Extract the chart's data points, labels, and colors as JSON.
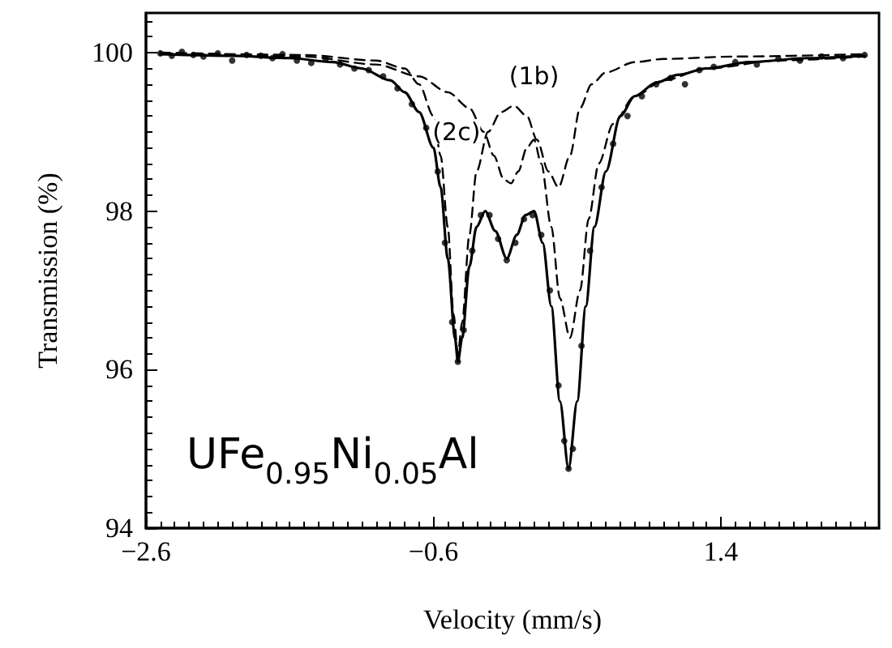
{
  "chart_data": {
    "type": "line",
    "xlabel": "Velocity (mm/s)",
    "ylabel": "Transmission (%)",
    "xlim": [
      -2.6,
      2.5
    ],
    "xticks": [
      -2.6,
      -0.6,
      1.4
    ],
    "ylim": [
      94,
      100.5
    ],
    "yticks": [
      94,
      96,
      98,
      100
    ],
    "annotations": [
      {
        "text": "(2c)",
        "x": -0.44,
        "y": 99.0
      },
      {
        "text": "(1b)",
        "x": 0.1,
        "y": 99.7
      },
      "UFe$_{0.95}$Ni$_{0.05}$Al"
    ],
    "series": [
      {
        "type": "scatter",
        "color": "#000000",
        "marker": "circle",
        "x": [
          -2.5,
          -2.42,
          -2.35,
          -2.27,
          -2.2,
          -2.1,
          -2.0,
          -1.9,
          -1.8,
          -1.72,
          -1.65,
          -1.55,
          -1.45,
          -1.35,
          -1.25,
          -1.15,
          -1.05,
          -0.95,
          -0.85,
          -0.75,
          -0.65,
          -0.57,
          -0.52,
          -0.47,
          -0.43,
          -0.39,
          -0.33,
          -0.27,
          -0.21,
          -0.15,
          -0.09,
          -0.03,
          0.03,
          0.09,
          0.15,
          0.21,
          0.27,
          0.31,
          0.34,
          0.37,
          0.43,
          0.49,
          0.57,
          0.65,
          0.75,
          0.85,
          0.95,
          1.05,
          1.15,
          1.25,
          1.35,
          1.5,
          1.65,
          1.8,
          1.95,
          2.1,
          2.25,
          2.4
        ],
        "values": [
          99.99,
          99.96,
          100.01,
          99.97,
          99.95,
          99.99,
          99.9,
          99.97,
          99.96,
          99.93,
          99.98,
          99.9,
          99.87,
          99.92,
          99.85,
          99.8,
          99.78,
          99.7,
          99.55,
          99.35,
          99.05,
          98.5,
          97.6,
          96.6,
          96.1,
          96.5,
          97.5,
          97.95,
          97.95,
          97.65,
          97.38,
          97.6,
          97.9,
          97.95,
          97.7,
          97.0,
          95.8,
          95.1,
          94.75,
          95.0,
          96.3,
          97.5,
          98.3,
          98.85,
          99.2,
          99.45,
          99.6,
          99.68,
          99.6,
          99.78,
          99.82,
          99.88,
          99.85,
          99.92,
          99.9,
          99.95,
          99.93,
          99.97
        ]
      },
      {
        "color": "#000000",
        "line_style": "solid",
        "x": [
          -2.5,
          -2.0,
          -1.6,
          -1.3,
          -1.1,
          -0.9,
          -0.8,
          -0.7,
          -0.6,
          -0.55,
          -0.5,
          -0.45,
          -0.43,
          -0.4,
          -0.35,
          -0.3,
          -0.24,
          -0.17,
          -0.09,
          -0.02,
          0.04,
          0.1,
          0.16,
          0.22,
          0.28,
          0.34,
          0.4,
          0.46,
          0.52,
          0.6,
          0.7,
          0.8,
          0.95,
          1.1,
          1.3,
          1.6,
          2.0,
          2.4
        ],
        "values": [
          99.98,
          99.96,
          99.93,
          99.88,
          99.8,
          99.65,
          99.5,
          99.25,
          98.8,
          98.3,
          97.4,
          96.4,
          96.1,
          96.4,
          97.3,
          97.8,
          98.0,
          97.75,
          97.4,
          97.7,
          97.95,
          98.0,
          97.6,
          96.8,
          95.6,
          94.75,
          95.6,
          96.8,
          97.8,
          98.5,
          99.2,
          99.45,
          99.62,
          99.72,
          99.8,
          99.88,
          99.93,
          99.96
        ]
      },
      {
        "color": "#000000",
        "line_style": "dashed",
        "x": [
          -2.5,
          -1.5,
          -1.0,
          -0.8,
          -0.7,
          -0.6,
          -0.55,
          -0.5,
          -0.46,
          -0.43,
          -0.4,
          -0.35,
          -0.3,
          -0.22,
          -0.13,
          -0.04,
          0.05,
          0.12,
          0.2,
          0.27,
          0.35,
          0.42,
          0.5,
          0.6,
          0.8,
          1.0,
          1.5,
          2.4
        ],
        "values": [
          100.0,
          99.97,
          99.9,
          99.8,
          99.6,
          99.2,
          98.7,
          97.8,
          96.7,
          96.2,
          96.6,
          97.7,
          98.5,
          99.0,
          99.25,
          99.33,
          99.2,
          98.9,
          98.5,
          98.3,
          98.7,
          99.3,
          99.6,
          99.75,
          99.88,
          99.92,
          99.95,
          99.98
        ]
      },
      {
        "color": "#000000",
        "line_style": "dashed",
        "x": [
          -2.5,
          -1.5,
          -1.0,
          -0.7,
          -0.5,
          -0.35,
          -0.25,
          -0.18,
          -0.11,
          -0.06,
          -0.01,
          0.05,
          0.1,
          0.15,
          0.22,
          0.28,
          0.35,
          0.42,
          0.48,
          0.55,
          0.65,
          0.8,
          1.0,
          1.3,
          1.8,
          2.4
        ],
        "values": [
          100.0,
          99.95,
          99.85,
          99.7,
          99.5,
          99.3,
          99.0,
          98.7,
          98.4,
          98.35,
          98.5,
          98.8,
          98.9,
          98.6,
          97.8,
          96.9,
          96.4,
          97.0,
          97.9,
          98.6,
          99.1,
          99.45,
          99.65,
          99.8,
          99.9,
          99.95
        ]
      }
    ]
  }
}
